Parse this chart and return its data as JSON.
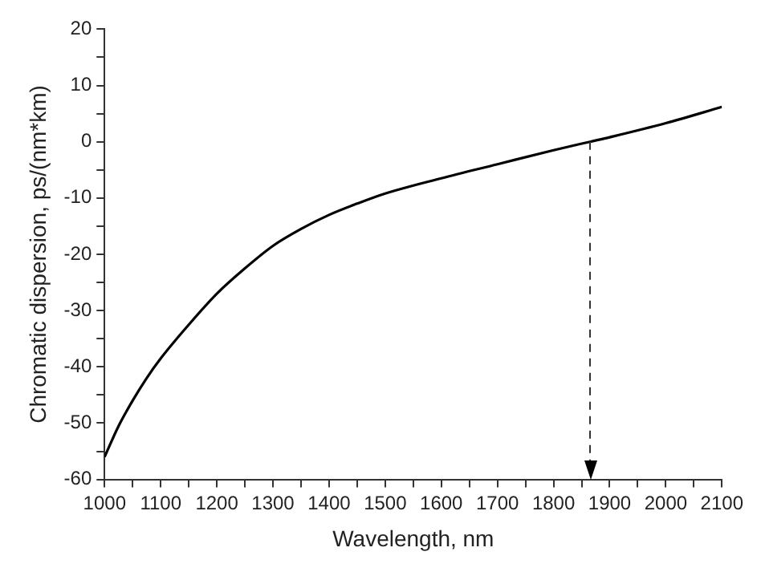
{
  "chart_data": {
    "type": "line",
    "xlabel": "Wavelength, nm",
    "ylabel": "Chromatic dispersion, ps/(nm*km)",
    "x": [
      1000,
      1025,
      1050,
      1075,
      1100,
      1150,
      1200,
      1250,
      1300,
      1350,
      1400,
      1450,
      1500,
      1600,
      1700,
      1800,
      1865,
      1900,
      2000,
      2100
    ],
    "series": [
      {
        "color": "#000000",
        "values": [
          -56,
          -50.5,
          -46,
          -42,
          -38.5,
          -32.5,
          -27,
          -22.5,
          -18.5,
          -15.5,
          -13,
          -11,
          -9.2,
          -6.5,
          -4,
          -1.5,
          0,
          0.8,
          3.3,
          6.2
        ]
      }
    ],
    "xlim": [
      1000,
      2100
    ],
    "ylim": [
      -60,
      20
    ],
    "xticks": [
      1000,
      {
        "value": 1050,
        "label": null
      },
      1100,
      {
        "value": 1150,
        "label": null
      },
      1200,
      {
        "value": 1250,
        "label": null
      },
      1300,
      {
        "value": 1350,
        "label": null
      },
      1400,
      {
        "value": 1450,
        "label": null
      },
      1500,
      {
        "value": 1550,
        "label": null
      },
      1600,
      {
        "value": 1650,
        "label": null
      },
      1700,
      {
        "value": 1750,
        "label": null
      },
      1800,
      {
        "value": 1850,
        "label": null
      },
      1900,
      {
        "value": 1950,
        "label": null
      },
      2000,
      {
        "value": 2050,
        "label": null
      },
      2100
    ],
    "yticks": [
      -60,
      {
        "value": -55,
        "label": null
      },
      -50,
      {
        "value": -45,
        "label": null
      },
      -40,
      {
        "value": -35,
        "label": null
      },
      -30,
      {
        "value": -25,
        "label": null
      },
      -20,
      {
        "value": -15,
        "label": null
      },
      -10,
      {
        "value": -5,
        "label": null
      },
      0,
      {
        "value": 5,
        "label": null
      },
      10,
      {
        "value": 15,
        "label": null
      },
      20
    ],
    "ref_lines": [
      {
        "axis": "x",
        "value": 1865,
        "line_style": "dashed",
        "color": "#333333"
      }
    ],
    "grid": false,
    "legend": false,
    "marker": "none",
    "line_style": "solid"
  }
}
